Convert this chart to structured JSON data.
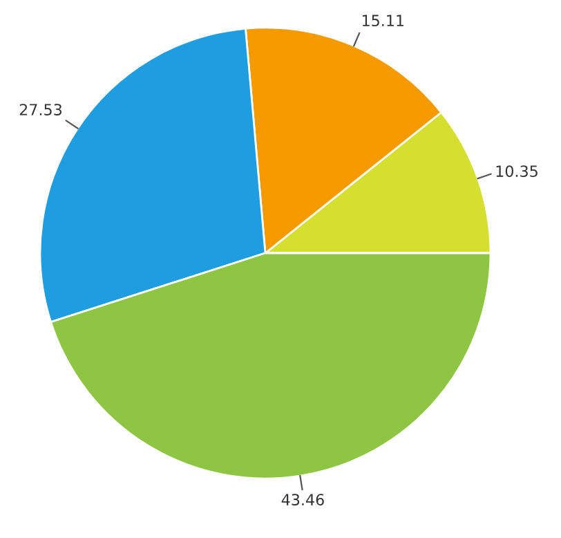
{
  "chart_data": {
    "type": "pie",
    "categories": [
      null,
      null,
      null,
      null
    ],
    "values": [
      10.35,
      15.11,
      27.53,
      43.46
    ],
    "colors": [
      "#d4df2f",
      "#f59a00",
      "#1e9de0",
      "#8ec543"
    ],
    "data_labels": true
  }
}
